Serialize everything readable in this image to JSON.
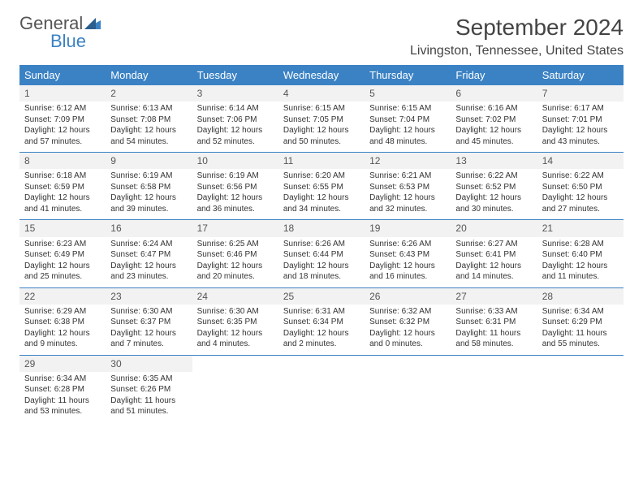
{
  "brand": {
    "general": "General",
    "blue": "Blue"
  },
  "title": "September 2024",
  "location": "Livingston, Tennessee, United States",
  "weekdays": [
    "Sunday",
    "Monday",
    "Tuesday",
    "Wednesday",
    "Thursday",
    "Friday",
    "Saturday"
  ],
  "colors": {
    "header_bg": "#3b82c4",
    "header_text": "#ffffff",
    "daynum_bg": "#f2f2f2",
    "text": "#333333",
    "border": "#3b82c4"
  },
  "days": [
    {
      "n": "1",
      "sr": "Sunrise: 6:12 AM",
      "ss": "Sunset: 7:09 PM",
      "dl": "Daylight: 12 hours and 57 minutes."
    },
    {
      "n": "2",
      "sr": "Sunrise: 6:13 AM",
      "ss": "Sunset: 7:08 PM",
      "dl": "Daylight: 12 hours and 54 minutes."
    },
    {
      "n": "3",
      "sr": "Sunrise: 6:14 AM",
      "ss": "Sunset: 7:06 PM",
      "dl": "Daylight: 12 hours and 52 minutes."
    },
    {
      "n": "4",
      "sr": "Sunrise: 6:15 AM",
      "ss": "Sunset: 7:05 PM",
      "dl": "Daylight: 12 hours and 50 minutes."
    },
    {
      "n": "5",
      "sr": "Sunrise: 6:15 AM",
      "ss": "Sunset: 7:04 PM",
      "dl": "Daylight: 12 hours and 48 minutes."
    },
    {
      "n": "6",
      "sr": "Sunrise: 6:16 AM",
      "ss": "Sunset: 7:02 PM",
      "dl": "Daylight: 12 hours and 45 minutes."
    },
    {
      "n": "7",
      "sr": "Sunrise: 6:17 AM",
      "ss": "Sunset: 7:01 PM",
      "dl": "Daylight: 12 hours and 43 minutes."
    },
    {
      "n": "8",
      "sr": "Sunrise: 6:18 AM",
      "ss": "Sunset: 6:59 PM",
      "dl": "Daylight: 12 hours and 41 minutes."
    },
    {
      "n": "9",
      "sr": "Sunrise: 6:19 AM",
      "ss": "Sunset: 6:58 PM",
      "dl": "Daylight: 12 hours and 39 minutes."
    },
    {
      "n": "10",
      "sr": "Sunrise: 6:19 AM",
      "ss": "Sunset: 6:56 PM",
      "dl": "Daylight: 12 hours and 36 minutes."
    },
    {
      "n": "11",
      "sr": "Sunrise: 6:20 AM",
      "ss": "Sunset: 6:55 PM",
      "dl": "Daylight: 12 hours and 34 minutes."
    },
    {
      "n": "12",
      "sr": "Sunrise: 6:21 AM",
      "ss": "Sunset: 6:53 PM",
      "dl": "Daylight: 12 hours and 32 minutes."
    },
    {
      "n": "13",
      "sr": "Sunrise: 6:22 AM",
      "ss": "Sunset: 6:52 PM",
      "dl": "Daylight: 12 hours and 30 minutes."
    },
    {
      "n": "14",
      "sr": "Sunrise: 6:22 AM",
      "ss": "Sunset: 6:50 PM",
      "dl": "Daylight: 12 hours and 27 minutes."
    },
    {
      "n": "15",
      "sr": "Sunrise: 6:23 AM",
      "ss": "Sunset: 6:49 PM",
      "dl": "Daylight: 12 hours and 25 minutes."
    },
    {
      "n": "16",
      "sr": "Sunrise: 6:24 AM",
      "ss": "Sunset: 6:47 PM",
      "dl": "Daylight: 12 hours and 23 minutes."
    },
    {
      "n": "17",
      "sr": "Sunrise: 6:25 AM",
      "ss": "Sunset: 6:46 PM",
      "dl": "Daylight: 12 hours and 20 minutes."
    },
    {
      "n": "18",
      "sr": "Sunrise: 6:26 AM",
      "ss": "Sunset: 6:44 PM",
      "dl": "Daylight: 12 hours and 18 minutes."
    },
    {
      "n": "19",
      "sr": "Sunrise: 6:26 AM",
      "ss": "Sunset: 6:43 PM",
      "dl": "Daylight: 12 hours and 16 minutes."
    },
    {
      "n": "20",
      "sr": "Sunrise: 6:27 AM",
      "ss": "Sunset: 6:41 PM",
      "dl": "Daylight: 12 hours and 14 minutes."
    },
    {
      "n": "21",
      "sr": "Sunrise: 6:28 AM",
      "ss": "Sunset: 6:40 PM",
      "dl": "Daylight: 12 hours and 11 minutes."
    },
    {
      "n": "22",
      "sr": "Sunrise: 6:29 AM",
      "ss": "Sunset: 6:38 PM",
      "dl": "Daylight: 12 hours and 9 minutes."
    },
    {
      "n": "23",
      "sr": "Sunrise: 6:30 AM",
      "ss": "Sunset: 6:37 PM",
      "dl": "Daylight: 12 hours and 7 minutes."
    },
    {
      "n": "24",
      "sr": "Sunrise: 6:30 AM",
      "ss": "Sunset: 6:35 PM",
      "dl": "Daylight: 12 hours and 4 minutes."
    },
    {
      "n": "25",
      "sr": "Sunrise: 6:31 AM",
      "ss": "Sunset: 6:34 PM",
      "dl": "Daylight: 12 hours and 2 minutes."
    },
    {
      "n": "26",
      "sr": "Sunrise: 6:32 AM",
      "ss": "Sunset: 6:32 PM",
      "dl": "Daylight: 12 hours and 0 minutes."
    },
    {
      "n": "27",
      "sr": "Sunrise: 6:33 AM",
      "ss": "Sunset: 6:31 PM",
      "dl": "Daylight: 11 hours and 58 minutes."
    },
    {
      "n": "28",
      "sr": "Sunrise: 6:34 AM",
      "ss": "Sunset: 6:29 PM",
      "dl": "Daylight: 11 hours and 55 minutes."
    },
    {
      "n": "29",
      "sr": "Sunrise: 6:34 AM",
      "ss": "Sunset: 6:28 PM",
      "dl": "Daylight: 11 hours and 53 minutes."
    },
    {
      "n": "30",
      "sr": "Sunrise: 6:35 AM",
      "ss": "Sunset: 6:26 PM",
      "dl": "Daylight: 11 hours and 51 minutes."
    }
  ]
}
